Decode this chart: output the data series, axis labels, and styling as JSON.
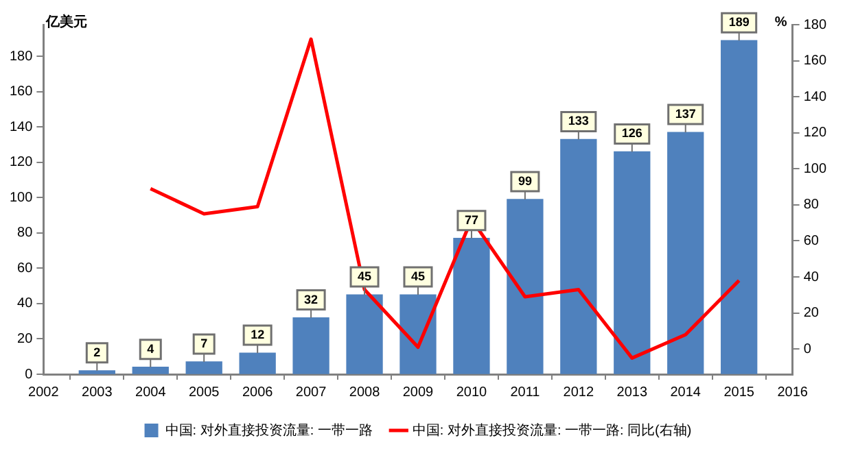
{
  "chart_data": {
    "type": "bar",
    "ylabel": "亿美元",
    "y2label": "%",
    "x": [
      2003,
      2004,
      2005,
      2006,
      2007,
      2008,
      2009,
      2010,
      2011,
      2012,
      2013,
      2014,
      2015
    ],
    "xlim": [
      2002,
      2016
    ],
    "xticks": [
      2002,
      2003,
      2004,
      2005,
      2006,
      2007,
      2008,
      2009,
      2010,
      2011,
      2012,
      2013,
      2014,
      2015,
      2016
    ],
    "ylim": [
      0,
      198
    ],
    "yticks": [
      0,
      20,
      40,
      60,
      80,
      100,
      120,
      140,
      160,
      180
    ],
    "y2lim": [
      -14,
      180
    ],
    "y2ticks": [
      0,
      20,
      40,
      60,
      80,
      100,
      120,
      140,
      160,
      180
    ],
    "legend": "bottom",
    "series": [
      {
        "name": "中国: 对外直接投资流量: 一带一路",
        "color": "#4f81bd",
        "values": [
          2,
          4,
          7,
          12,
          32,
          45,
          45,
          77,
          99,
          133,
          126,
          137,
          189
        ],
        "value_labels": [
          "2",
          "4",
          "7",
          "12",
          "32",
          "45",
          "45",
          "77",
          "99",
          "133",
          "126",
          "137",
          "189"
        ]
      },
      {
        "name": "中国: 对外直接投资流量: 一带一路: 同比(右轴)",
        "type": "line",
        "axis": "y2",
        "color": "#ff0000",
        "values": [
          null,
          89,
          75,
          79,
          172,
          33,
          1,
          72,
          29,
          33,
          -5,
          8,
          38
        ]
      }
    ]
  }
}
